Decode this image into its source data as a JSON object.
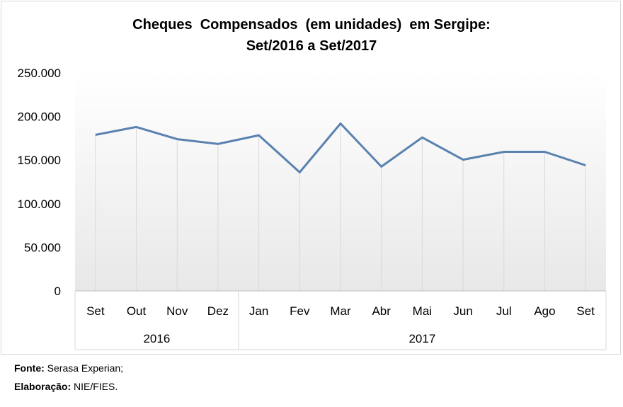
{
  "chart_data": {
    "type": "line",
    "title": "Cheques  Compensados  (em unidades)  em Sergipe:",
    "subtitle": "Set/2016 a Set/2017",
    "categories": [
      "Set",
      "Out",
      "Nov",
      "Dez",
      "Jan",
      "Fev",
      "Mar",
      "Abr",
      "Mai",
      "Jun",
      "Jul",
      "Ago",
      "Set"
    ],
    "groups": [
      {
        "label": "2016",
        "count": 4
      },
      {
        "label": "2017",
        "count": 9
      }
    ],
    "values": [
      179000,
      188000,
      174000,
      168500,
      178500,
      136000,
      192000,
      142500,
      176000,
      150500,
      159500,
      159500,
      144000
    ],
    "yticks": [
      "250.000",
      "200.000",
      "150.000",
      "100.000",
      "50.000",
      "0"
    ],
    "ylim": [
      0,
      250000
    ],
    "line_color": "#5a82b0",
    "gridlines": "vertical drop lines only",
    "background": "gradient white to light gray"
  },
  "footer": {
    "source_label": "Fonte:",
    "source_value": " Serasa Experian;",
    "author_label": "Elaboração:",
    "author_value": " NIE/FIES."
  }
}
